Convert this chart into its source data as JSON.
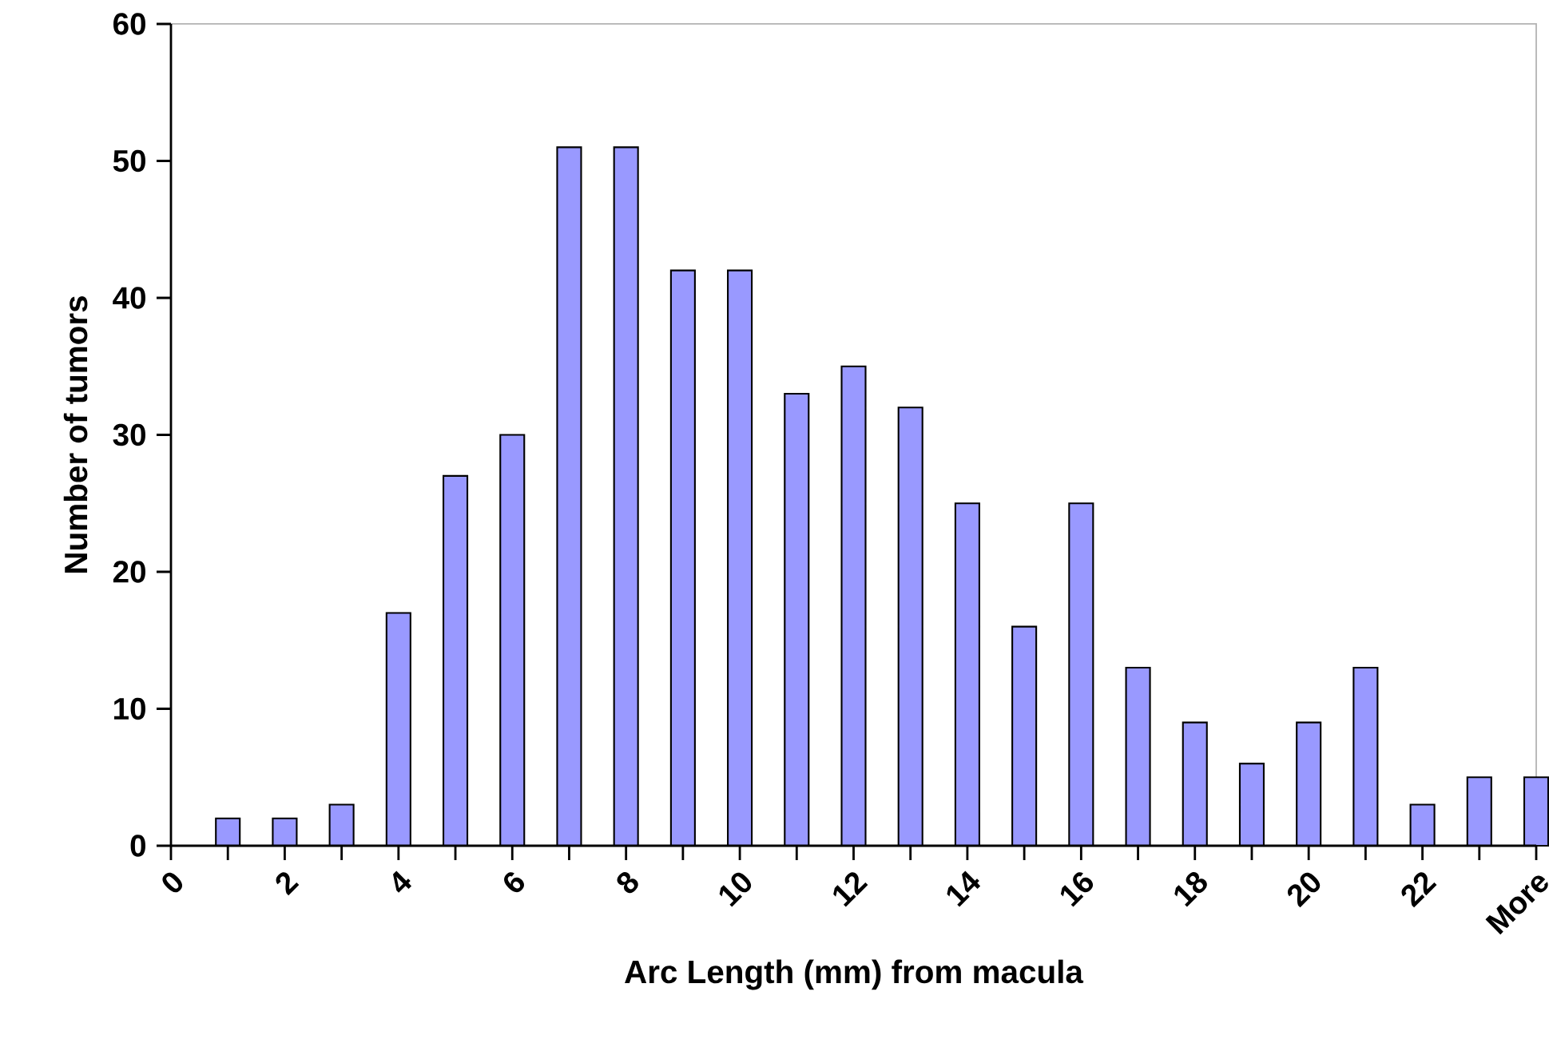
{
  "chart_data": {
    "type": "bar",
    "xlabel": "Arc Length (mm) from macula",
    "ylabel": "Number of tumors",
    "x": [
      1,
      2,
      3,
      4,
      5,
      6,
      7,
      8,
      9,
      10,
      11,
      12,
      13,
      14,
      15,
      16,
      17,
      18,
      19,
      20,
      21,
      22,
      23,
      24
    ],
    "values": [
      2,
      2,
      3,
      17,
      27,
      30,
      51,
      51,
      42,
      42,
      33,
      35,
      32,
      25,
      16,
      25,
      13,
      9,
      6,
      9,
      13,
      3,
      5,
      5
    ],
    "color": "#9999ff",
    "xlim": [
      0,
      24
    ],
    "xticks": [
      0,
      2,
      4,
      6,
      8,
      10,
      12,
      14,
      16,
      18,
      20,
      22,
      {
        "value": 24,
        "label": "More"
      }
    ],
    "ylim": [
      0,
      60
    ],
    "yticks": [
      0,
      10,
      20,
      30,
      40,
      50,
      60
    ],
    "grid": false
  }
}
